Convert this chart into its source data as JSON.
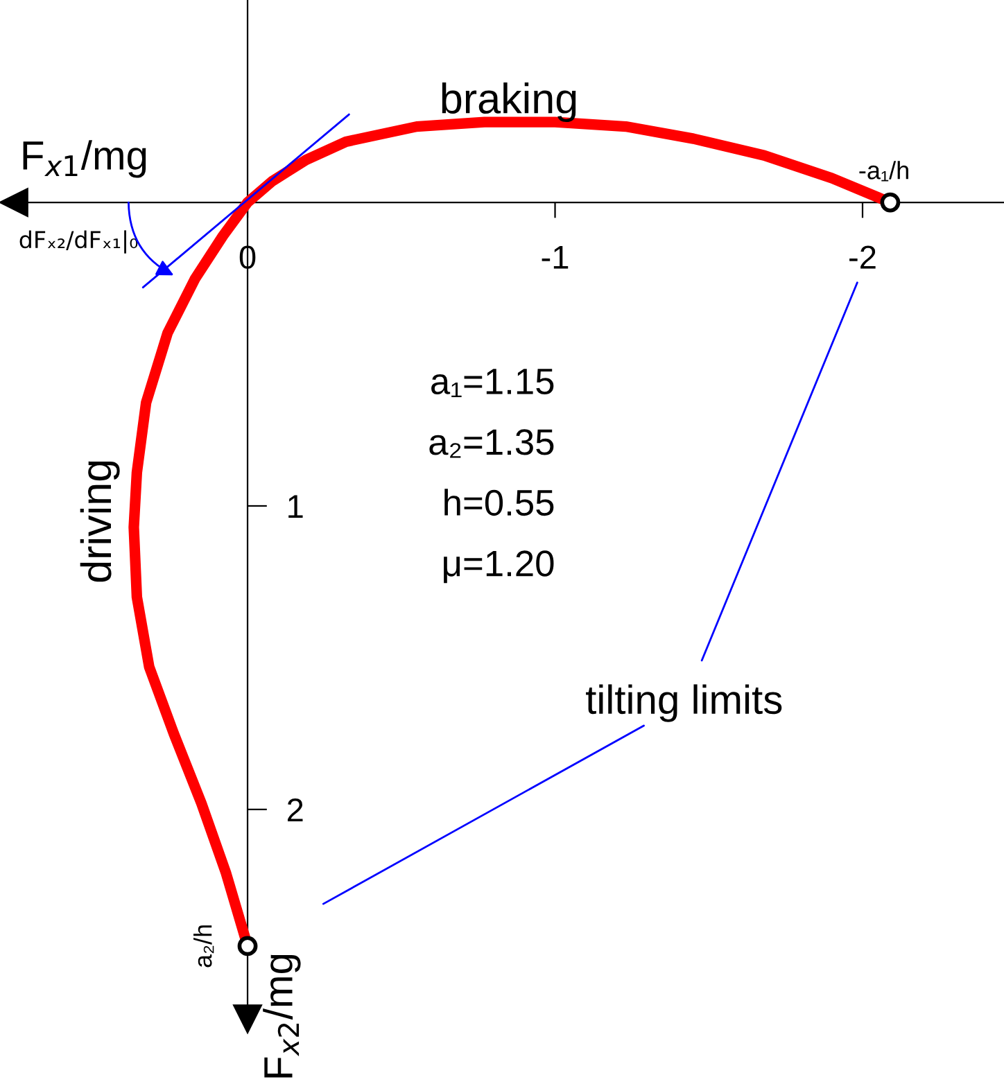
{
  "chart_data": {
    "type": "line",
    "xlabel": "F$_{x1}$/mg",
    "ylabel": "F$_{x2}$/mg",
    "xlim": [
      0.76,
      -2.46
    ],
    "ylim": [
      2.69,
      -0.667
    ],
    "xticks": [
      {
        "value": 0,
        "label": "0"
      },
      {
        "value": -1,
        "label": "-1"
      },
      {
        "value": -2,
        "label": "-2"
      }
    ],
    "yticks": [
      1,
      2
    ],
    "grid": false,
    "series": [
      {
        "color": "#ff0000",
        "x": [
          -2.09,
          -1.9,
          -1.68,
          -1.45,
          -1.23,
          -1.0,
          -0.77,
          -0.55,
          -0.32,
          -0.19,
          -0.08,
          0,
          0.08,
          0.17,
          0.26,
          0.33,
          0.36,
          0.37,
          0.36,
          0.32,
          0.24,
          0.15,
          0.07,
          0
        ],
        "values": [
          0,
          -0.08,
          -0.155,
          -0.21,
          -0.25,
          -0.265,
          -0.265,
          -0.25,
          -0.2,
          -0.14,
          -0.07,
          0,
          0.11,
          0.25,
          0.43,
          0.66,
          0.89,
          1.07,
          1.3,
          1.53,
          1.75,
          1.98,
          2.21,
          2.45
        ]
      },
      {
        "type": "line",
        "color": "#0000ff",
        "x": [
          0.34,
          -0.33
        ],
        "values": [
          0.28,
          -0.29
        ]
      },
      {
        "type": "scatter",
        "color": "#000000",
        "x": [
          -2.09,
          0
        ],
        "values": [
          0,
          2.45
        ]
      }
    ],
    "annotations": [
      {
        "text": "-a₁/h",
        "x": -2.09,
        "y": 0
      },
      {
        "text": "a₂/h",
        "x": 0,
        "y": 2.45
      },
      "braking",
      "driving",
      "a₁=1.15",
      "a₂=1.35",
      "h=0.55",
      "μ=1.20",
      "dFₓ₂/dFₓ₁|₀",
      "tilting limits"
    ]
  }
}
